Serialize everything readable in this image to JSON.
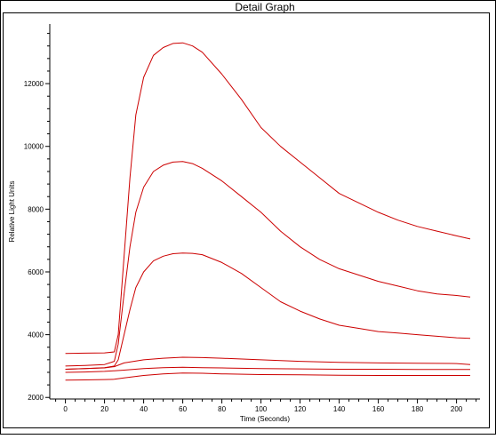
{
  "window": {
    "title": "Detail Graph"
  },
  "chart_data": {
    "type": "line",
    "title": "Detail Graph",
    "xlabel": "Time (Seconds)",
    "ylabel": "Relative Light Units",
    "xlim": [
      -8,
      212
    ],
    "ylim": [
      1950,
      13900
    ],
    "x_ticks": [
      0,
      20,
      40,
      60,
      80,
      100,
      120,
      140,
      160,
      180,
      200
    ],
    "y_ticks": [
      2000,
      4000,
      6000,
      8000,
      10000,
      12000
    ],
    "grid": false,
    "legend": "none",
    "line_color": "#cc0000",
    "series": [
      {
        "x": [
          0,
          10,
          20,
          25,
          27,
          30,
          33,
          36,
          40,
          45,
          50,
          55,
          60,
          65,
          70,
          80,
          90,
          100,
          110,
          120,
          130,
          140,
          150,
          160,
          170,
          180,
          190,
          200,
          207
        ],
        "y": [
          3400,
          3410,
          3420,
          3450,
          4000,
          6500,
          9000,
          11000,
          12200,
          12900,
          13150,
          13280,
          13300,
          13200,
          13000,
          12300,
          11500,
          10600,
          10000,
          9500,
          9000,
          8500,
          8200,
          7900,
          7650,
          7450,
          7300,
          7150,
          7050
        ]
      },
      {
        "x": [
          0,
          10,
          20,
          25,
          27,
          30,
          33,
          36,
          40,
          45,
          50,
          55,
          60,
          65,
          70,
          80,
          90,
          100,
          110,
          120,
          130,
          140,
          150,
          160,
          170,
          180,
          190,
          200,
          207
        ],
        "y": [
          3000,
          3020,
          3050,
          3150,
          3700,
          5300,
          6800,
          7900,
          8700,
          9200,
          9400,
          9500,
          9520,
          9450,
          9300,
          8900,
          8400,
          7900,
          7300,
          6800,
          6400,
          6100,
          5900,
          5700,
          5550,
          5400,
          5300,
          5250,
          5200
        ]
      },
      {
        "x": [
          0,
          10,
          20,
          25,
          27,
          30,
          33,
          36,
          40,
          45,
          50,
          55,
          60,
          65,
          70,
          80,
          90,
          100,
          110,
          120,
          130,
          140,
          150,
          160,
          170,
          180,
          190,
          200,
          207
        ],
        "y": [
          2900,
          2920,
          2950,
          3000,
          3200,
          4000,
          4800,
          5500,
          6000,
          6350,
          6500,
          6580,
          6600,
          6590,
          6550,
          6300,
          5950,
          5500,
          5050,
          4750,
          4500,
          4300,
          4200,
          4100,
          4050,
          4000,
          3950,
          3900,
          3880
        ]
      },
      {
        "x": [
          0,
          10,
          20,
          25,
          30,
          40,
          50,
          60,
          70,
          80,
          100,
          120,
          140,
          160,
          180,
          200,
          207
        ],
        "y": [
          2900,
          2920,
          2940,
          2980,
          3100,
          3200,
          3250,
          3280,
          3270,
          3250,
          3200,
          3150,
          3120,
          3100,
          3090,
          3080,
          3050
        ]
      },
      {
        "x": [
          0,
          10,
          20,
          25,
          30,
          40,
          50,
          60,
          70,
          80,
          100,
          120,
          140,
          160,
          180,
          200,
          207
        ],
        "y": [
          2800,
          2810,
          2830,
          2850,
          2870,
          2920,
          2950,
          2960,
          2950,
          2940,
          2920,
          2910,
          2900,
          2900,
          2890,
          2890,
          2890
        ]
      },
      {
        "x": [
          0,
          10,
          20,
          25,
          30,
          40,
          50,
          60,
          70,
          80,
          100,
          120,
          140,
          160,
          180,
          200,
          207
        ],
        "y": [
          2550,
          2560,
          2570,
          2580,
          2620,
          2700,
          2750,
          2780,
          2770,
          2750,
          2730,
          2720,
          2710,
          2700,
          2700,
          2700,
          2700
        ]
      }
    ]
  }
}
